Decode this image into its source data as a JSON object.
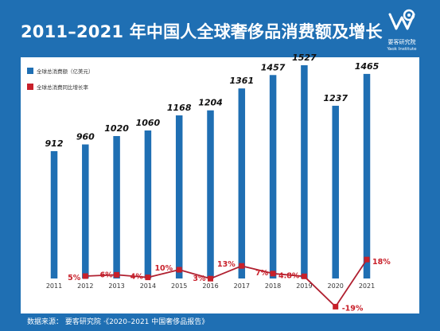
{
  "title": "2011–2021 年中国人全球奢侈品消费额及增长",
  "logo": {
    "name_cn": "要客研究院",
    "name_en": "Yaok Institute"
  },
  "source": "数据来源： 要客研究院 ·《2020–2021 中国奢侈品报告》",
  "colors": {
    "bar": "#1f6fb3",
    "line": "#b02030",
    "point": "#c8202a",
    "background": "#1f6fb3"
  },
  "chart_data": {
    "type": "bar",
    "categories": [
      "2011",
      "2012",
      "2013",
      "2014",
      "2015",
      "2016",
      "2017",
      "2018",
      "2019",
      "2020",
      "2021"
    ],
    "series": [
      {
        "name": "全球总消费额（亿美元）",
        "type": "bar",
        "values": [
          912,
          960,
          1020,
          1060,
          1168,
          1204,
          1361,
          1457,
          1527,
          1237,
          1465
        ]
      },
      {
        "name": "全球总消费同比增长率",
        "type": "line",
        "values": [
          null,
          5,
          6,
          4,
          10,
          3,
          13,
          7,
          4.8,
          -19,
          18
        ]
      }
    ],
    "bar_labels": [
      "912",
      "960",
      "1020",
      "1060",
      "1168",
      "1204",
      "1361",
      "1457",
      "1527",
      "1237",
      "1465"
    ],
    "line_labels": [
      "",
      "5%",
      "6%",
      "4%",
      "10%",
      "3%",
      "13%",
      "7%",
      "4.8%",
      "-19%",
      "18%"
    ],
    "legend_position": "top-left",
    "grid": false
  }
}
